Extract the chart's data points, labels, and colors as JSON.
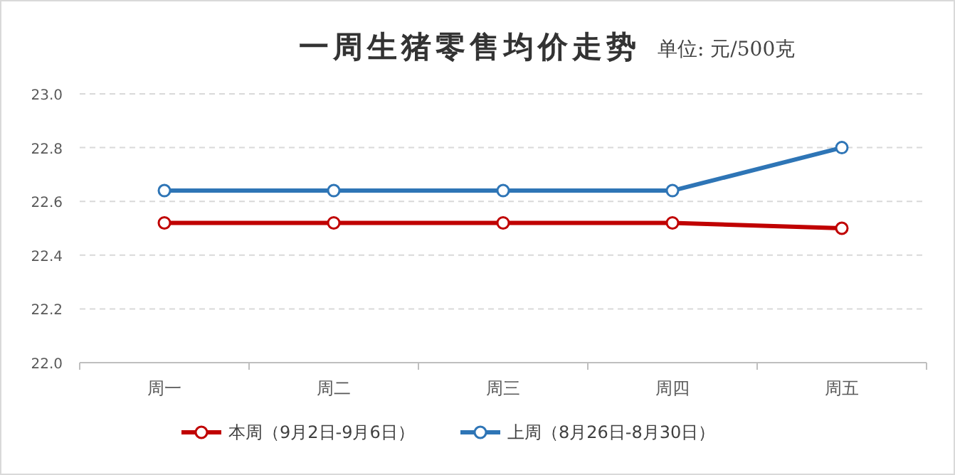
{
  "chart_data": {
    "type": "line",
    "title": "一周生猪零售均价走势",
    "subtitle": "单位: 元/500克",
    "categories": [
      "周一",
      "周二",
      "周三",
      "周四",
      "周五"
    ],
    "series": [
      {
        "name": "本周（9月2日-9月6日）",
        "color": "#c00000",
        "values": [
          22.52,
          22.52,
          22.52,
          22.52,
          22.5
        ]
      },
      {
        "name": "上周（8月26日-8月30日）",
        "color": "#2e75b6",
        "values": [
          22.64,
          22.64,
          22.64,
          22.64,
          22.8
        ]
      }
    ],
    "ylim": [
      22,
      23
    ],
    "yticks": [
      {
        "value": 22,
        "label": "22.0"
      },
      {
        "value": 22.2,
        "label": "22.2"
      },
      {
        "value": 22.4,
        "label": "22.4"
      },
      {
        "value": 22.6,
        "label": "22.6"
      },
      {
        "value": 22.8,
        "label": "22.8"
      },
      {
        "value": 23,
        "label": "23.0"
      }
    ],
    "grid": "y",
    "legend": "bottom",
    "marker": "circle",
    "line_style": "solid"
  }
}
